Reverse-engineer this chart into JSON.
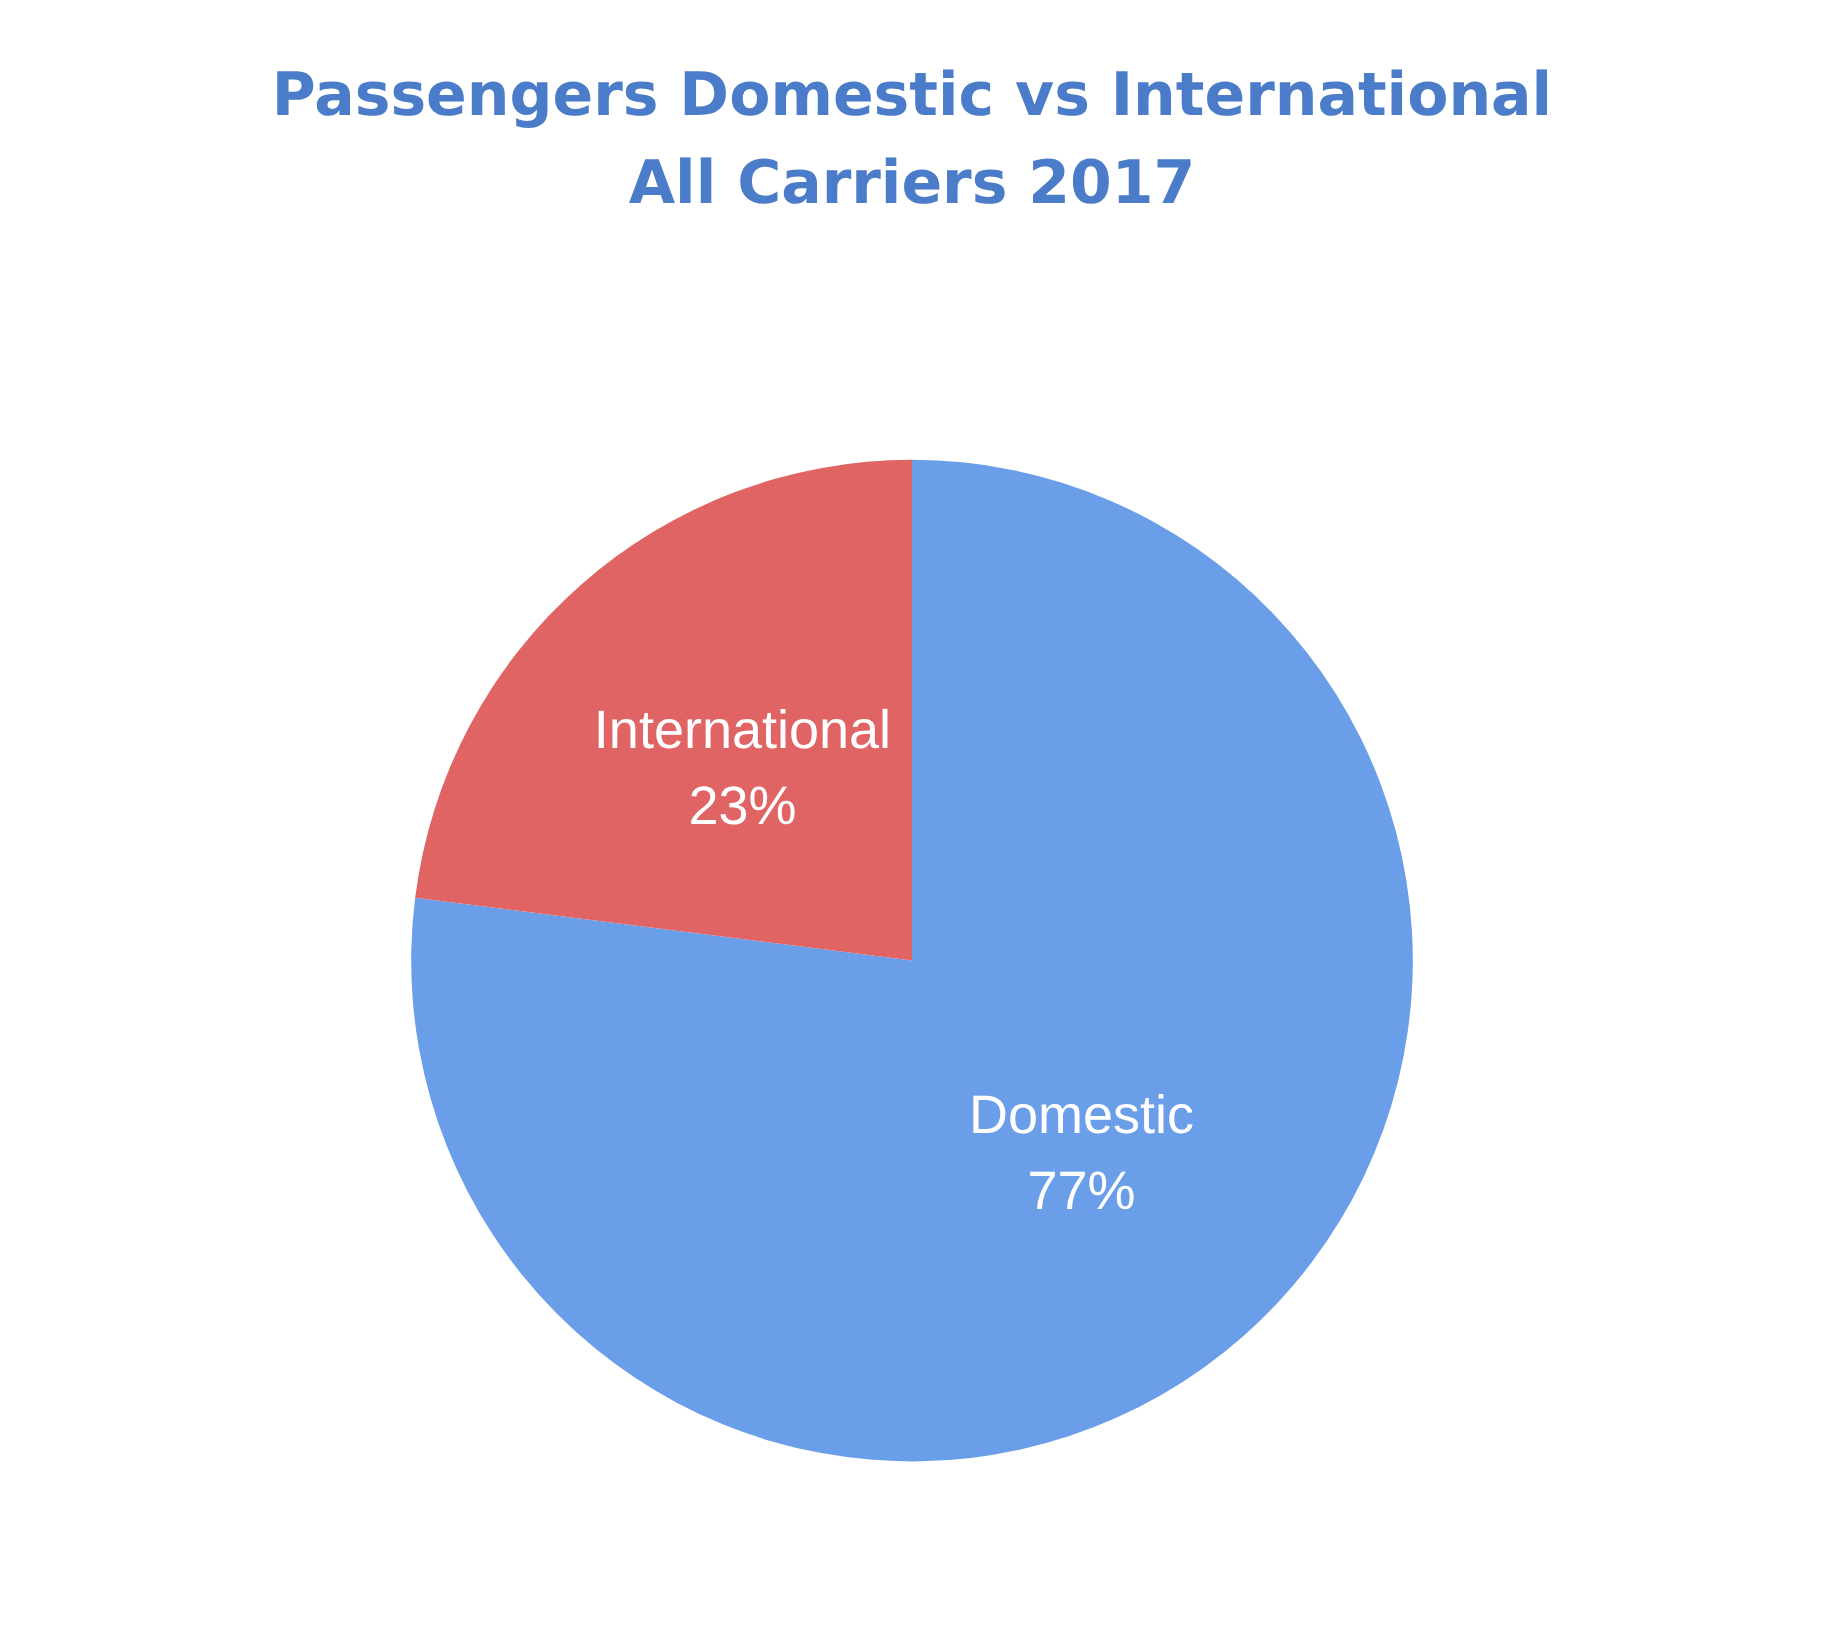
{
  "chart_data": {
    "type": "pie",
    "title": "Passengers Domestic vs International",
    "subtitle": "All Carriers 2017",
    "categories": [
      "Domestic",
      "International"
    ],
    "values": [
      77,
      23
    ],
    "value_labels": [
      "77%",
      "23%"
    ],
    "colors": [
      "#6a9ee8",
      "#e06464"
    ],
    "legend": false
  }
}
